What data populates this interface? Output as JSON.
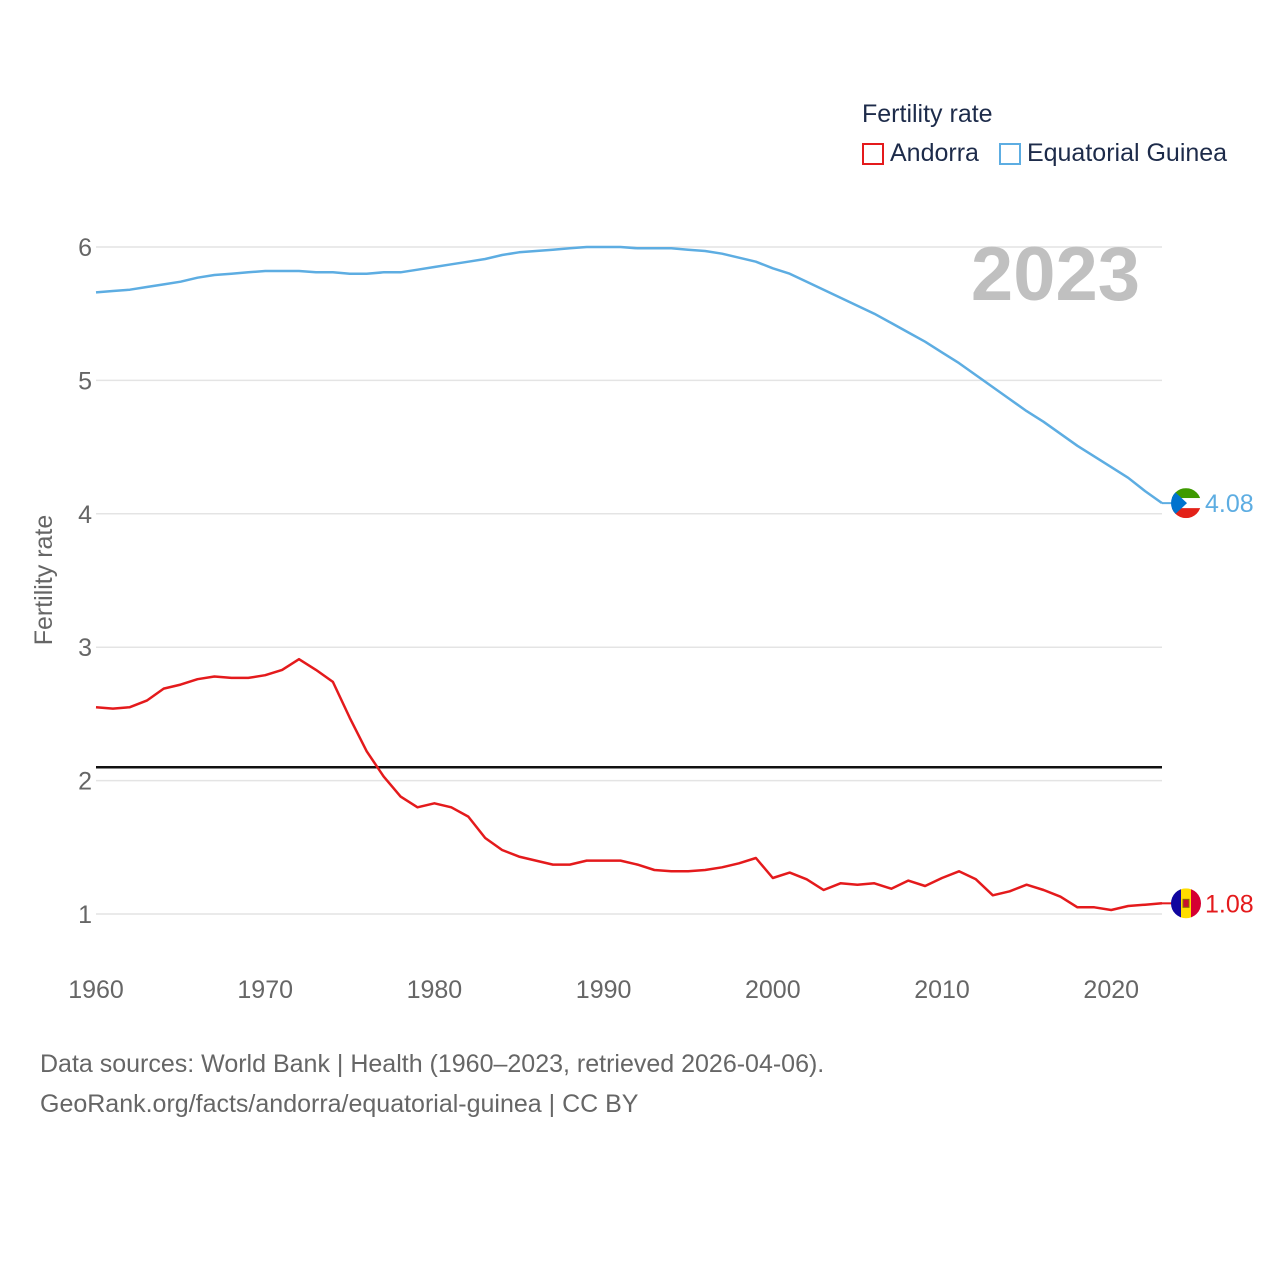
{
  "chart_data": {
    "type": "line",
    "title": "Fertility rate",
    "ylabel": "Fertility rate",
    "xlabel": "",
    "xlim": [
      1960,
      2023
    ],
    "ylim": [
      0.5,
      6.25
    ],
    "x_ticks": [
      1960,
      1970,
      1980,
      1990,
      2000,
      2010,
      2020
    ],
    "y_ticks": [
      1,
      2,
      3,
      4,
      5,
      6
    ],
    "year_label": "2023",
    "reference_line": {
      "value": 2.1
    },
    "legend": {
      "title": "Fertility rate",
      "placement": "top-right"
    },
    "x": [
      1960,
      1961,
      1962,
      1963,
      1964,
      1965,
      1966,
      1967,
      1968,
      1969,
      1970,
      1971,
      1972,
      1973,
      1974,
      1975,
      1976,
      1977,
      1978,
      1979,
      1980,
      1981,
      1982,
      1983,
      1984,
      1985,
      1986,
      1987,
      1988,
      1989,
      1990,
      1991,
      1992,
      1993,
      1994,
      1995,
      1996,
      1997,
      1998,
      1999,
      2000,
      2001,
      2002,
      2003,
      2004,
      2005,
      2006,
      2007,
      2008,
      2009,
      2010,
      2011,
      2012,
      2013,
      2014,
      2015,
      2016,
      2017,
      2018,
      2019,
      2020,
      2021,
      2022,
      2023
    ],
    "series": [
      {
        "name": "Andorra",
        "color": "#e41a1c",
        "end_label": "1.08",
        "values": [
          2.55,
          2.54,
          2.55,
          2.6,
          2.69,
          2.72,
          2.76,
          2.78,
          2.77,
          2.77,
          2.79,
          2.83,
          2.91,
          2.83,
          2.74,
          2.47,
          2.22,
          2.03,
          1.88,
          1.8,
          1.83,
          1.8,
          1.73,
          1.57,
          1.48,
          1.43,
          1.4,
          1.37,
          1.37,
          1.4,
          1.4,
          1.4,
          1.37,
          1.33,
          1.32,
          1.32,
          1.33,
          1.35,
          1.38,
          1.42,
          1.27,
          1.31,
          1.26,
          1.18,
          1.23,
          1.22,
          1.23,
          1.19,
          1.25,
          1.21,
          1.27,
          1.32,
          1.26,
          1.14,
          1.17,
          1.22,
          1.18,
          1.13,
          1.05,
          1.05,
          1.03,
          1.06,
          1.07,
          1.08
        ]
      },
      {
        "name": "Equatorial Guinea",
        "color": "#5dade2",
        "end_label": "4.08",
        "values": [
          5.66,
          5.67,
          5.68,
          5.7,
          5.72,
          5.74,
          5.77,
          5.79,
          5.8,
          5.81,
          5.82,
          5.82,
          5.82,
          5.81,
          5.81,
          5.8,
          5.8,
          5.81,
          5.81,
          5.83,
          5.85,
          5.87,
          5.89,
          5.91,
          5.94,
          5.96,
          5.97,
          5.98,
          5.99,
          6.0,
          6.0,
          6.0,
          5.99,
          5.99,
          5.99,
          5.98,
          5.97,
          5.95,
          5.92,
          5.89,
          5.84,
          5.8,
          5.74,
          5.68,
          5.62,
          5.56,
          5.5,
          5.43,
          5.36,
          5.29,
          5.21,
          5.13,
          5.04,
          4.95,
          4.86,
          4.77,
          4.69,
          4.6,
          4.51,
          4.43,
          4.35,
          4.27,
          4.17,
          4.08
        ]
      }
    ]
  },
  "footer": {
    "line1": "Data sources: World Bank | Health (1960–2023, retrieved 2026-04-06).",
    "line2": "GeoRank.org/facts/andorra/equatorial-guinea | CC BY"
  }
}
